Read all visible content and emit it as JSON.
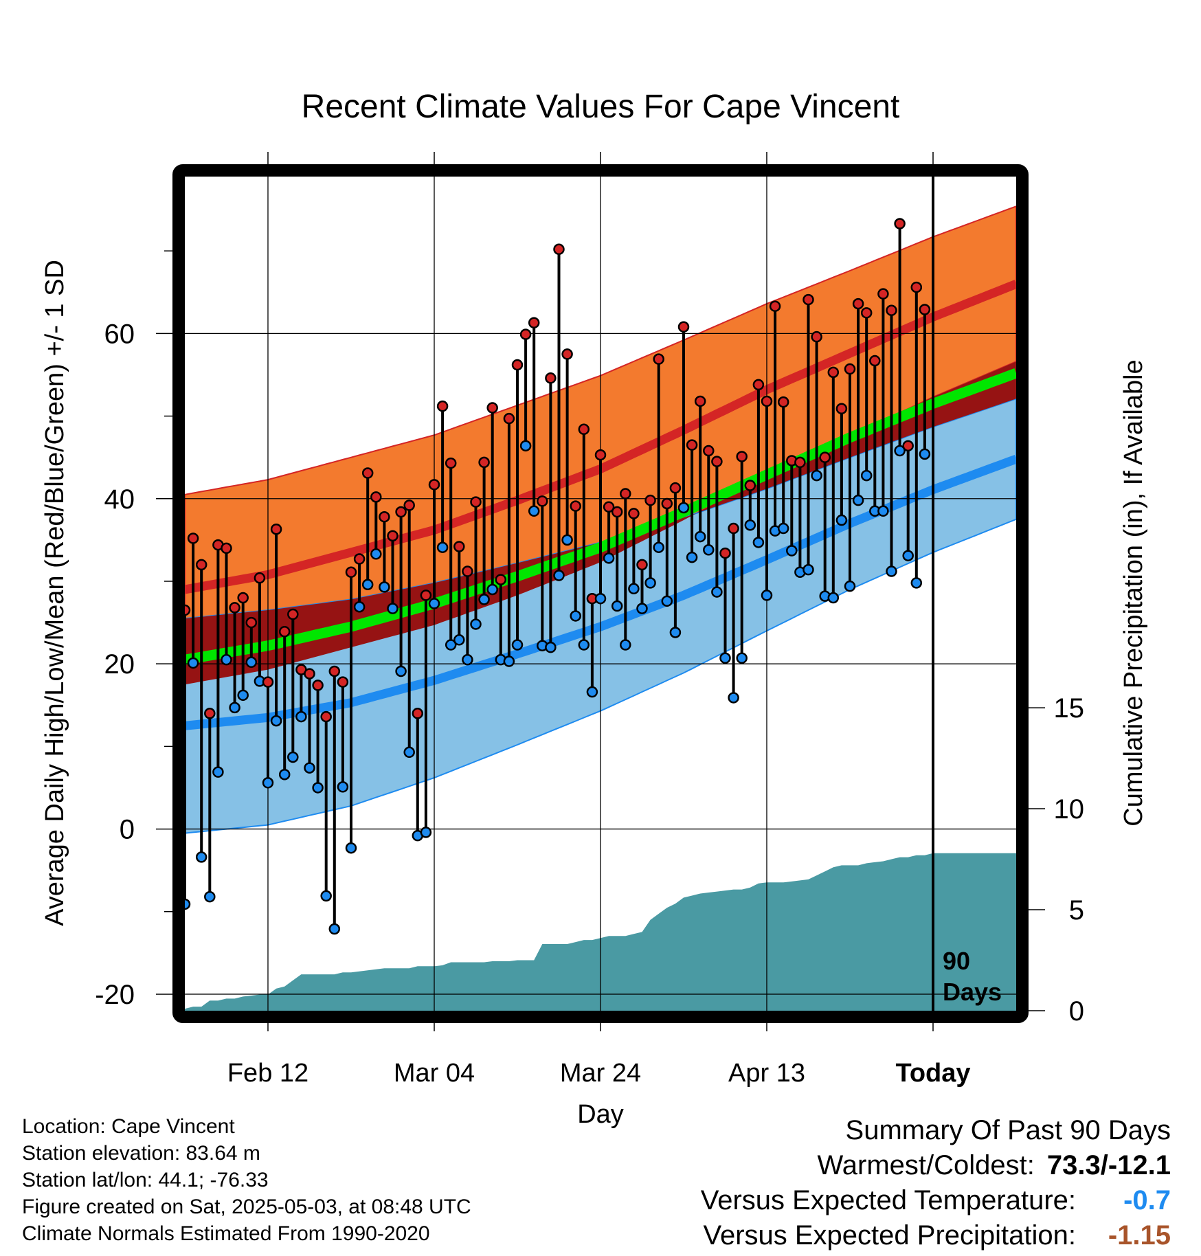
{
  "title": "Recent Climate Values For Cape Vincent",
  "xlabel": "Day",
  "ylabel_left": "Average Daily High/Low/Mean (Red/Blue/Green) +/- 1 SD",
  "ylabel_right": "Cumulative Precipitation (in), If Available",
  "today_marker": {
    "label_line1": "90",
    "label_line2": "Days"
  },
  "footer": {
    "location": "Location: Cape Vincent",
    "elevation": "Station elevation: 83.64 m",
    "latlon": "Station lat/lon: 44.1; -76.33",
    "created": "Figure created on Sat, 2025-05-03, at 08:48 UTC",
    "normals": "Climate Normals Estimated From 1990-2020"
  },
  "summary": {
    "heading": "Summary Of Past 90 Days",
    "warmest_coldest_label": "Warmest/Coldest:",
    "warmest_coldest_value": "73.3/-12.1",
    "temp_label": "Versus Expected Temperature:",
    "temp_value": "-0.7",
    "precip_label": "Versus Expected Precipitation:",
    "precip_value": "-1.15"
  },
  "colors": {
    "high_band": "#f37a2e",
    "high_line": "#d42525",
    "mean_line": "#00e600",
    "low_band": "#86c1e6",
    "low_line": "#1e8bf0",
    "overlap": "#961313",
    "precip": "#4a9aa3",
    "temp_value": "#1e8bf0",
    "precip_value": "#a8542a"
  },
  "chart_data": {
    "type": "line",
    "x_ticks": [
      {
        "day": 10,
        "label": "Feb 12"
      },
      {
        "day": 30,
        "label": "Mar 04"
      },
      {
        "day": 50,
        "label": "Mar 24"
      },
      {
        "day": 70,
        "label": "Apr 13"
      },
      {
        "day": 90,
        "label": "Today"
      }
    ],
    "xlim": [
      0,
      100
    ],
    "ylim_left": [
      -22,
      79
    ],
    "y_ticks_left": [
      -20,
      0,
      20,
      40,
      60
    ],
    "ylim_right": [
      0,
      41.3
    ],
    "y_ticks_right": [
      0,
      5,
      10,
      15
    ],
    "normals_days": [
      0,
      10,
      20,
      30,
      40,
      50,
      60,
      70,
      80,
      90,
      100
    ],
    "normal_high": [
      29,
      30.8,
      33.5,
      36.2,
      39.8,
      43.6,
      48.3,
      53.2,
      57.6,
      62,
      66
    ],
    "normal_high_sd": [
      11.5,
      11.5,
      11.5,
      11.5,
      11.5,
      11.3,
      10.9,
      10.4,
      10,
      9.7,
      9.4
    ],
    "normal_mean": [
      20.5,
      22.2,
      24.5,
      27.3,
      30.6,
      34.1,
      38.4,
      42.9,
      47.4,
      51.5,
      55.2
    ],
    "normal_low": [
      12.5,
      13.5,
      15.3,
      18,
      21.2,
      24.5,
      28.3,
      32.6,
      37,
      41.1,
      44.8
    ],
    "normal_low_sd": [
      13,
      13,
      12.5,
      11.8,
      11,
      10.2,
      9.4,
      8.6,
      8,
      7.6,
      7.3
    ],
    "daily_high": [
      26.5,
      35.2,
      32,
      14,
      34.4,
      34,
      26.8,
      28,
      25,
      30.4,
      17.8,
      36.3,
      23.9,
      26,
      19.3,
      18.8,
      17.4,
      13.6,
      19.1,
      17.8,
      31.1,
      32.7,
      43.1,
      40.2,
      37.8,
      35.5,
      38.4,
      39.2,
      14,
      28.3,
      41.7,
      51.2,
      44.3,
      34.2,
      31.2,
      39.6,
      44.4,
      51,
      30.2,
      49.7,
      56.2,
      59.9,
      61.3,
      39.7,
      54.6,
      70.2,
      57.5,
      39.1,
      48.4,
      27.9,
      45.3,
      39,
      38.4,
      40.6,
      38.2,
      32,
      39.8,
      56.9,
      39.4,
      41.3,
      60.8,
      46.5,
      51.8,
      45.8,
      44.5,
      33.4,
      36.4,
      45.1,
      41.6,
      53.8,
      51.8,
      63.3,
      51.7,
      44.6,
      44.4,
      64.1,
      59.6,
      45,
      55.3,
      50.9,
      55.7,
      63.6,
      62.5,
      56.7,
      64.8,
      62.8,
      73.3,
      46.4,
      65.6,
      62.9
    ],
    "daily_low": [
      -9.1,
      20.1,
      -3.4,
      -8.2,
      6.9,
      20.5,
      14.7,
      16.2,
      20.2,
      17.9,
      5.6,
      13.1,
      6.6,
      8.7,
      13.6,
      7.4,
      5,
      -8.1,
      -12.1,
      5.1,
      -2.3,
      26.9,
      29.6,
      33.3,
      29.3,
      26.7,
      19.1,
      9.3,
      -0.8,
      -0.4,
      27.3,
      34.1,
      22.3,
      22.9,
      20.5,
      24.8,
      27.8,
      29,
      20.5,
      20.3,
      22.3,
      46.4,
      38.5,
      22.2,
      22,
      30.7,
      35,
      25.8,
      22.3,
      16.6,
      27.9,
      32.8,
      27,
      22.3,
      29.1,
      26.7,
      29.8,
      34.1,
      27.6,
      23.8,
      38.9,
      32.9,
      35.4,
      33.8,
      28.7,
      20.7,
      15.9,
      20.7,
      36.8,
      34.7,
      28.3,
      36.1,
      36.4,
      33.7,
      31.1,
      31.4,
      42.8,
      28.2,
      28,
      37.4,
      29.4,
      39.8,
      42.8,
      38.5,
      38.5,
      31.2,
      45.8,
      33.1,
      29.8,
      45.4
    ],
    "precip_days": [
      0,
      1,
      2,
      3,
      4,
      5,
      6,
      7,
      8,
      9,
      10,
      11,
      12,
      13,
      14,
      15,
      16,
      17,
      18,
      19,
      20,
      21,
      22,
      23,
      24,
      25,
      26,
      27,
      28,
      29,
      30,
      31,
      32,
      33,
      34,
      35,
      36,
      37,
      38,
      39,
      40,
      41,
      42,
      43,
      44,
      45,
      46,
      47,
      48,
      49,
      50,
      51,
      52,
      53,
      54,
      55,
      56,
      57,
      58,
      59,
      60,
      61,
      62,
      63,
      64,
      65,
      66,
      67,
      68,
      69,
      70,
      71,
      72,
      73,
      74,
      75,
      76,
      77,
      78,
      79,
      80,
      81,
      82,
      83,
      84,
      85,
      86,
      87,
      88,
      89,
      90,
      91,
      92,
      93,
      94,
      95,
      96,
      97,
      98,
      99,
      100
    ],
    "precip_cum": [
      0.1,
      0.2,
      0.2,
      0.5,
      0.5,
      0.6,
      0.6,
      0.7,
      0.75,
      0.8,
      0.8,
      1.1,
      1.2,
      1.5,
      1.8,
      1.8,
      1.8,
      1.8,
      1.8,
      1.9,
      1.9,
      1.95,
      2.0,
      2.05,
      2.1,
      2.1,
      2.1,
      2.1,
      2.2,
      2.2,
      2.2,
      2.25,
      2.4,
      2.4,
      2.4,
      2.4,
      2.4,
      2.45,
      2.45,
      2.45,
      2.5,
      2.5,
      2.5,
      3.3,
      3.3,
      3.3,
      3.3,
      3.4,
      3.5,
      3.5,
      3.6,
      3.7,
      3.7,
      3.7,
      3.8,
      3.9,
      4.5,
      4.8,
      5.1,
      5.3,
      5.6,
      5.7,
      5.8,
      5.85,
      5.9,
      5.95,
      6.0,
      6.0,
      6.1,
      6.3,
      6.35,
      6.35,
      6.35,
      6.4,
      6.45,
      6.5,
      6.7,
      6.9,
      7.1,
      7.2,
      7.2,
      7.2,
      7.3,
      7.35,
      7.4,
      7.5,
      7.6,
      7.6,
      7.7,
      7.7,
      7.8,
      7.8,
      7.8,
      7.8,
      7.8,
      7.8,
      7.8,
      7.8,
      7.8,
      7.8,
      7.8
    ]
  }
}
